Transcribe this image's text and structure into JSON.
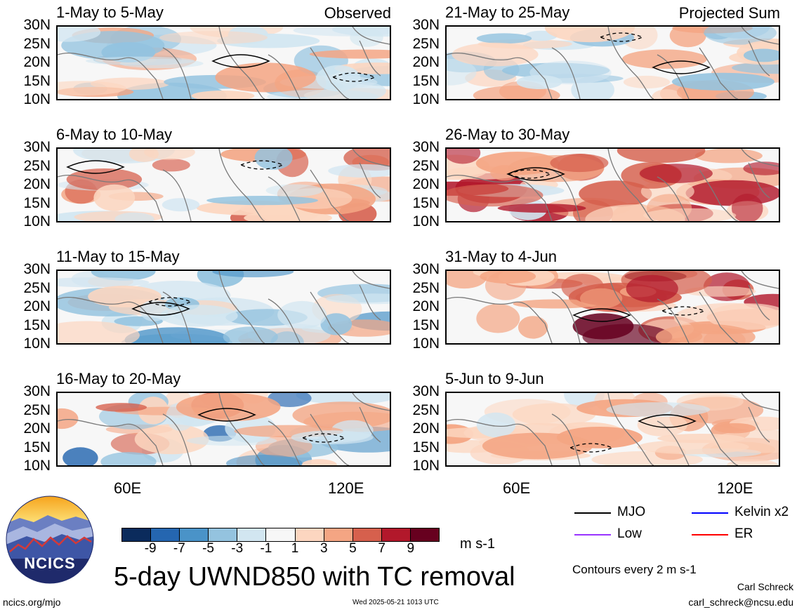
{
  "panels": [
    {
      "title": "1-May to 5-May",
      "corner": "Observed",
      "col": 0,
      "row": 0
    },
    {
      "title": "6-May to 10-May",
      "corner": "",
      "col": 0,
      "row": 1
    },
    {
      "title": "11-May to 15-May",
      "corner": "",
      "col": 0,
      "row": 2
    },
    {
      "title": "16-May to 20-May",
      "corner": "",
      "col": 0,
      "row": 3
    },
    {
      "title": "21-May to 25-May",
      "corner": "Projected Sum",
      "col": 1,
      "row": 0
    },
    {
      "title": "26-May to 30-May",
      "corner": "",
      "col": 1,
      "row": 1
    },
    {
      "title": "31-May to 4-Jun",
      "corner": "",
      "col": 1,
      "row": 2
    },
    {
      "title": "5-Jun to 9-Jun",
      "corner": "",
      "col": 1,
      "row": 3
    }
  ],
  "lat_labels": [
    "30N",
    "25N",
    "20N",
    "15N",
    "10N"
  ],
  "lon_labels": [
    "60E",
    "120E"
  ],
  "colorbar": {
    "colors": [
      "#0b2b5c",
      "#2566b0",
      "#4a93c8",
      "#94c3df",
      "#d2e6f1",
      "#f7f7f7",
      "#fcd6c0",
      "#f4a583",
      "#d6604d",
      "#b2182b",
      "#67001f"
    ],
    "labels": [
      "-9",
      "-7",
      "-5",
      "-3",
      "-1",
      "1",
      "3",
      "5",
      "7",
      "9"
    ],
    "units": "m s-1"
  },
  "main_title": "5-day UWND850 with TC removal",
  "legend": {
    "items": [
      {
        "label": "MJO",
        "color": "#000000"
      },
      {
        "label": "Kelvin x2",
        "color": "#0000ff"
      },
      {
        "label": "Low",
        "color": "#9933ff"
      },
      {
        "label": "ER",
        "color": "#ff0000"
      }
    ],
    "contour_note": "Contours every 2 m s-1"
  },
  "logo": {
    "text": "NCICS"
  },
  "footer": {
    "url": "ncics.org/mjo",
    "timestamp": "Wed 2025-05-21 1013 UTC",
    "author": "Carl Schreck",
    "email": "carl_schreck@ncsu.edu"
  }
}
